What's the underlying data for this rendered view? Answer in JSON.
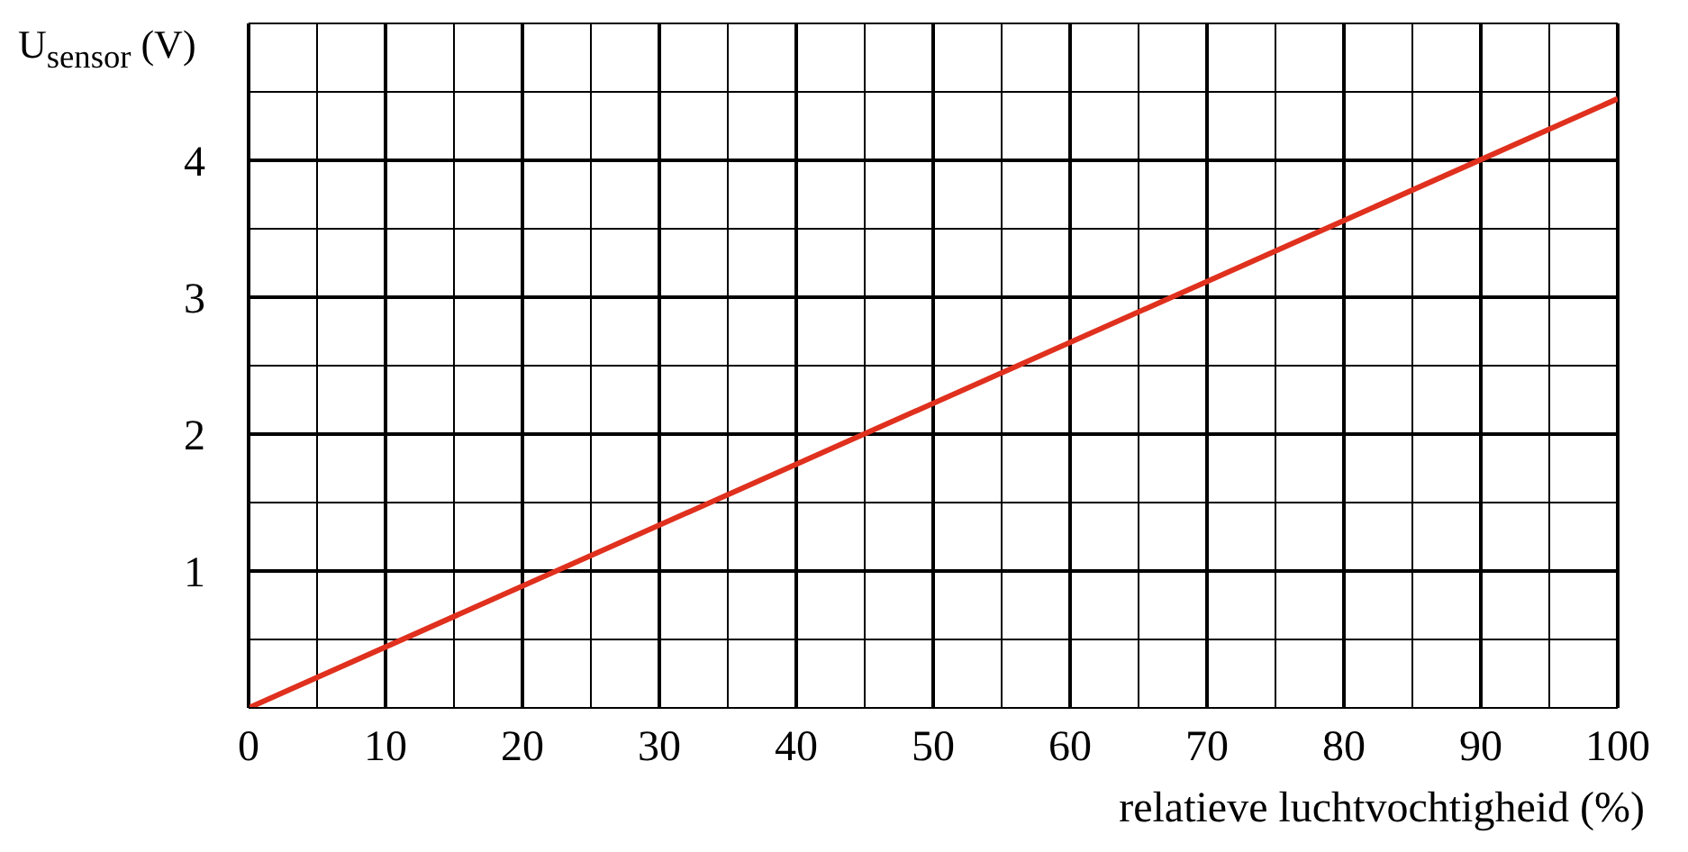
{
  "chart_data": {
    "type": "line",
    "xlabel": "relatieve luchtvochtigheid (%)",
    "ylabel": "U$_{sensor}$ (V)",
    "x": [
      0,
      100
    ],
    "series": [
      {
        "color": "#e0301e",
        "values": [
          0,
          4.45
        ]
      }
    ],
    "xlim": [
      0,
      100
    ],
    "xticks": [
      0,
      {
        "value": 5,
        "label": null
      },
      10,
      {
        "value": 15,
        "label": null
      },
      20,
      {
        "value": 25,
        "label": null
      },
      30,
      {
        "value": 35,
        "label": null
      },
      40,
      {
        "value": 45,
        "label": null
      },
      50,
      {
        "value": 55,
        "label": null
      },
      60,
      {
        "value": 65,
        "label": null
      },
      70,
      {
        "value": 75,
        "label": null
      },
      80,
      {
        "value": 85,
        "label": null
      },
      90,
      {
        "value": 95,
        "label": null
      },
      100
    ],
    "ylim": [
      0,
      5
    ],
    "yticks": [
      {
        "value": 0,
        "label": null
      },
      {
        "value": 0.5,
        "label": null
      },
      1,
      {
        "value": 1.5,
        "label": null
      },
      2,
      {
        "value": 2.5,
        "label": null
      },
      3,
      {
        "value": 3.5,
        "label": null
      },
      4,
      {
        "value": 4.5,
        "label": null
      },
      {
        "value": 5,
        "label": null
      }
    ],
    "grid": true,
    "marker": "none",
    "line_style": "solid"
  }
}
